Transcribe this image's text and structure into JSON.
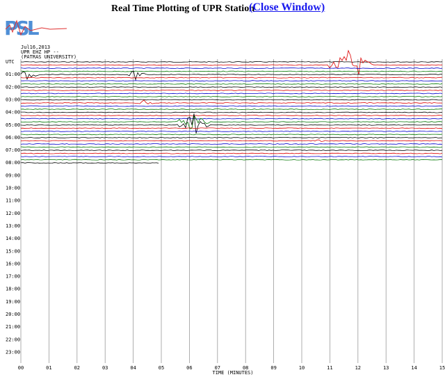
{
  "header": {
    "title": "Real Time Plotting of UPR Station",
    "link": "(Close Window)",
    "logo": "PSL"
  },
  "plot": {
    "date": "Jul16,2013",
    "channel": "UPR EHZ HP --",
    "station": "(PATRAS UNIVERSITY)",
    "rows": [
      "UTC",
      "01:00",
      "02:00",
      "03:00",
      "04:00",
      "05:00",
      "06:00",
      "07:00",
      "08:00",
      "09:00",
      "10:00",
      "11:00",
      "12:00",
      "13:00",
      "14:00",
      "15:00",
      "16:00",
      "17:00",
      "18:00",
      "19:00",
      "20:00",
      "21:00",
      "22:00",
      "23:00"
    ],
    "minutes": [
      "00",
      "01",
      "02",
      "03",
      "04",
      "05",
      "06",
      "07",
      "08",
      "09",
      "10",
      "11",
      "12",
      "13",
      "14",
      "15"
    ],
    "xlabel": "TIME (MINUTES)"
  }
}
